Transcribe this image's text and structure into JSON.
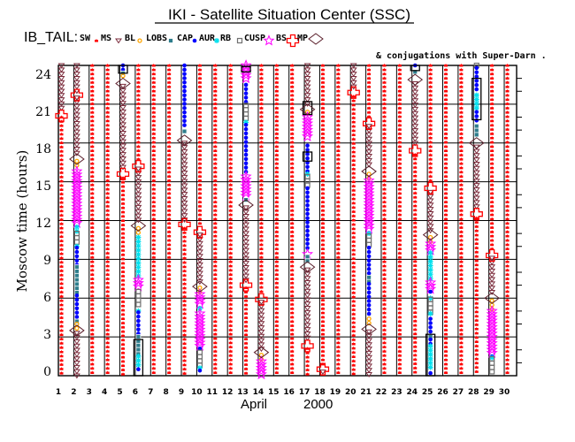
{
  "chart_data": {
    "type": "scatter",
    "title": "IKI - Satellite Situation Center (SSC)",
    "legend_title": "IB_TAIL:",
    "legend_note": "& conjugations with Super-Darn .",
    "legend_placement": "top",
    "xlabel_month": "April",
    "xlabel_year": "2000",
    "ylabel": "Moscow time (hours)",
    "xlim": [
      1,
      30
    ],
    "ylim": [
      0,
      24
    ],
    "grid": true,
    "x_ticks": [
      "1",
      "2",
      "3",
      "4",
      "5",
      "6",
      "7",
      "8",
      "9",
      "10",
      "11",
      "12",
      "13",
      "14",
      "15",
      "16",
      "17",
      "18",
      "19",
      "20",
      "21",
      "22",
      "23",
      "24",
      "25",
      "26",
      "27",
      "28",
      "29",
      "30"
    ],
    "y_ticks": [
      "0",
      "3",
      "6",
      "9",
      "12",
      "15",
      "18",
      "21",
      "24"
    ],
    "legend": [
      {
        "key": "SW",
        "label": "SW",
        "symbol": "red-splat",
        "color": "#ff0000"
      },
      {
        "key": "MS",
        "label": "MS",
        "symbol": "triangle-down",
        "color": "#7b2c3c"
      },
      {
        "key": "BL",
        "label": "BL",
        "symbol": "sun-circle",
        "color": "#ffa500"
      },
      {
        "key": "LOBS",
        "label": "LOBS",
        "symbol": "filled-square",
        "color": "#2e7d8c"
      },
      {
        "key": "CAP",
        "label": "CAP",
        "symbol": "dot",
        "color": "#0000ff"
      },
      {
        "key": "AUR",
        "label": "AUR",
        "symbol": "asterisk",
        "color": "#00e0ee"
      },
      {
        "key": "RB",
        "label": "RB",
        "symbol": "open-square",
        "color": "#707070"
      },
      {
        "key": "CUSP",
        "label": "CUSP",
        "symbol": "star",
        "color": "#ff00ff"
      },
      {
        "key": "BS",
        "label": "BS",
        "symbol": "cross",
        "color": "#ff0000"
      },
      {
        "key": "MP",
        "label": "MP",
        "symbol": "diamond",
        "color": "#5a1e2a"
      }
    ],
    "superdarn_color": "#000000",
    "days": [
      {
        "day": 1,
        "segments": [
          [
            "MS",
            24,
            20.4
          ],
          [
            "SW",
            20.0,
            0
          ]
        ],
        "bs": [
          20.1
        ],
        "mp": [],
        "superdarn": []
      },
      {
        "day": 2,
        "segments": [
          [
            "MS",
            24,
            21.9
          ],
          [
            "MS",
            21.5,
            16.9
          ],
          [
            "BL",
            16.6,
            16.0
          ],
          [
            "CUSP",
            15.8,
            11.6
          ],
          [
            "AUR",
            11.5,
            11.1
          ],
          [
            "RB",
            11.0,
            10.2
          ],
          [
            "AUR",
            10.0,
            10.0
          ],
          [
            "CAP",
            9.9,
            8.5
          ],
          [
            "LOBS",
            8.4,
            6.3
          ],
          [
            "CAP",
            6.2,
            4.3
          ],
          [
            "LOBS",
            4.2,
            4.2
          ],
          [
            "BL",
            4.0,
            3.6
          ],
          [
            "MS",
            3.3,
            0
          ]
        ],
        "bs": [
          21.7
        ],
        "mp": [
          16.75,
          3.5
        ],
        "superdarn": []
      },
      {
        "day": 3,
        "segments": [
          [
            "SW",
            24,
            0
          ]
        ],
        "bs": [],
        "mp": [],
        "superdarn": []
      },
      {
        "day": 4,
        "segments": [
          [
            "SW",
            24,
            0
          ]
        ],
        "bs": [],
        "mp": [],
        "superdarn": []
      },
      {
        "day": 5,
        "segments": [
          [
            "CAP",
            24,
            23.6
          ],
          [
            "LOBS",
            23.4,
            23.4
          ],
          [
            "BL",
            23.2,
            23.0
          ],
          [
            "MS",
            22.4,
            15.9
          ],
          [
            "SW",
            15.3,
            0
          ]
        ],
        "bs": [
          15.6
        ],
        "mp": [
          22.6
        ],
        "superdarn": [
          [
            24,
            23.4
          ]
        ]
      },
      {
        "day": 6,
        "segments": [
          [
            "SW",
            24,
            16.5
          ],
          [
            "MS",
            16.0,
            11.9
          ],
          [
            "BL",
            11.4,
            10.8
          ],
          [
            "AUR",
            10.7,
            7.6
          ],
          [
            "CUSP",
            7.4,
            6.7
          ],
          [
            "RB",
            6.5,
            5.2
          ],
          [
            "AUR",
            5.0,
            5.0
          ],
          [
            "CAP",
            4.9,
            3.1
          ],
          [
            "LOBS",
            3.0,
            1.6
          ],
          [
            "AUR",
            1.5,
            0.6
          ],
          [
            "CAP",
            0.5,
            0.2
          ]
        ],
        "bs": [
          16.2
        ],
        "mp": [
          11.6
        ],
        "superdarn": [
          [
            2.8,
            0
          ]
        ]
      },
      {
        "day": 7,
        "segments": [
          [
            "SW",
            24,
            0
          ]
        ],
        "bs": [],
        "mp": [],
        "superdarn": []
      },
      {
        "day": 8,
        "segments": [
          [
            "SW",
            24,
            0
          ]
        ],
        "bs": [],
        "mp": [],
        "superdarn": []
      },
      {
        "day": 9,
        "segments": [
          [
            "CAP",
            24,
            19.1
          ],
          [
            "LOBS",
            18.9,
            18.6
          ],
          [
            "MS",
            18.0,
            12.0
          ],
          [
            "SW",
            11.4,
            0
          ]
        ],
        "bs": [
          11.7
        ],
        "mp": [
          18.2
        ],
        "superdarn": []
      },
      {
        "day": 10,
        "segments": [
          [
            "SW",
            24,
            11.5
          ],
          [
            "MS",
            10.9,
            7.2
          ],
          [
            "BL",
            6.8,
            6.4
          ],
          [
            "CUSP",
            6.3,
            5.5
          ],
          [
            "AUR",
            5.2,
            4.9
          ],
          [
            "CUSP",
            4.8,
            2.2
          ],
          [
            "CAP",
            2.1,
            1.9
          ],
          [
            "RB",
            1.8,
            0.8
          ],
          [
            "AUR",
            0.6,
            0.6
          ],
          [
            "CAP",
            0.4,
            0.2
          ]
        ],
        "bs": [
          11.1
        ],
        "mp": [
          6.9
        ],
        "superdarn": []
      },
      {
        "day": 11,
        "segments": [
          [
            "SW",
            24,
            0
          ]
        ],
        "bs": [],
        "mp": [],
        "superdarn": []
      },
      {
        "day": 12,
        "segments": [
          [
            "SW",
            24,
            0
          ]
        ],
        "bs": [],
        "mp": [],
        "superdarn": []
      },
      {
        "day": 13,
        "segments": [
          [
            "CUSP",
            24,
            22.8
          ],
          [
            "CAP",
            22.5,
            21.0
          ],
          [
            "RB",
            20.9,
            19.8
          ],
          [
            "AUR",
            19.6,
            19.6
          ],
          [
            "CAP",
            19.4,
            15.6
          ],
          [
            "CUSP",
            15.4,
            13.8
          ],
          [
            "LOBS",
            13.6,
            13.4
          ],
          [
            "MS",
            13.0,
            7.2
          ],
          [
            "SW",
            6.8,
            0
          ]
        ],
        "bs": [
          7.0
        ],
        "mp": [
          13.2
        ],
        "superdarn": [
          [
            23.9,
            23.5
          ]
        ]
      },
      {
        "day": 14,
        "segments": [
          [
            "SW",
            24,
            6.2
          ],
          [
            "MS",
            5.7,
            2.0
          ],
          [
            "BL",
            1.6,
            1.2
          ],
          [
            "CUSP",
            1.1,
            0
          ]
        ],
        "bs": [
          5.9
        ],
        "mp": [
          1.8
        ],
        "superdarn": []
      },
      {
        "day": 15,
        "segments": [
          [
            "SW",
            24,
            0
          ]
        ],
        "bs": [],
        "mp": [],
        "superdarn": []
      },
      {
        "day": 16,
        "segments": [
          [
            "SW",
            24,
            0
          ]
        ],
        "bs": [],
        "mp": [],
        "superdarn": []
      },
      {
        "day": 17,
        "segments": [
          [
            "MS",
            24,
            20.8
          ],
          [
            "BL",
            20.4,
            20.1
          ],
          [
            "CUSP",
            20.0,
            18.3
          ],
          [
            "CAP",
            17.8,
            15.8
          ],
          [
            "AUR",
            15.6,
            15.6
          ],
          [
            "RB",
            15.4,
            14.6
          ],
          [
            "CAP",
            14.5,
            9.6
          ],
          [
            "CUSP",
            9.4,
            9.4
          ],
          [
            "LOBS",
            9.2,
            8.7
          ],
          [
            "MS",
            8.2,
            2.6
          ],
          [
            "SW",
            2.1,
            0
          ]
        ],
        "bs": [
          2.3
        ],
        "mp": [
          20.6,
          8.4
        ],
        "superdarn": [
          [
            21.2,
            20.2
          ],
          [
            17.3,
            16.6
          ]
        ]
      },
      {
        "day": 18,
        "segments": [
          [
            "SW",
            24,
            0.8
          ],
          [
            "MS",
            0.3,
            0
          ]
        ],
        "bs": [
          0.5
        ],
        "mp": [],
        "superdarn": []
      },
      {
        "day": 19,
        "segments": [
          [
            "SW",
            24,
            0
          ]
        ],
        "bs": [],
        "mp": [],
        "superdarn": []
      },
      {
        "day": 20,
        "segments": [
          [
            "MS",
            24,
            22.2
          ],
          [
            "SW",
            21.6,
            0
          ]
        ],
        "bs": [
          21.9
        ],
        "mp": [],
        "superdarn": []
      },
      {
        "day": 21,
        "segments": [
          [
            "SW",
            24,
            19.8
          ],
          [
            "MS",
            19.3,
            16.1
          ],
          [
            "BL",
            15.6,
            15.2
          ],
          [
            "CUSP",
            15.1,
            11.3
          ],
          [
            "AUR",
            11.0,
            11.0
          ],
          [
            "RB",
            10.8,
            10.0
          ],
          [
            "CAP",
            9.9,
            7.8
          ],
          [
            "LOBS",
            7.6,
            7.2
          ],
          [
            "CAP",
            7.1,
            4.6
          ],
          [
            "BL",
            4.4,
            4.0
          ],
          [
            "MS",
            3.4,
            0
          ]
        ],
        "bs": [
          19.5
        ],
        "mp": [
          15.8,
          3.6
        ],
        "superdarn": []
      },
      {
        "day": 22,
        "segments": [
          [
            "SW",
            24,
            0
          ]
        ],
        "bs": [],
        "mp": [],
        "superdarn": []
      },
      {
        "day": 23,
        "segments": [
          [
            "SW",
            24,
            0
          ]
        ],
        "bs": [],
        "mp": [],
        "superdarn": []
      },
      {
        "day": 24,
        "segments": [
          [
            "CAP",
            24,
            23.7
          ],
          [
            "LOBS",
            23.5,
            23.2
          ],
          [
            "MS",
            22.6,
            17.7
          ],
          [
            "SW",
            17.1,
            0
          ]
        ],
        "bs": [
          17.4
        ],
        "mp": [
          22.9
        ],
        "superdarn": [
          [
            24,
            23.6
          ]
        ]
      },
      {
        "day": 25,
        "segments": [
          [
            "SW",
            24,
            14.8
          ],
          [
            "MS",
            14.2,
            11.2
          ],
          [
            "BL",
            10.7,
            10.3
          ],
          [
            "CUSP",
            10.2,
            9.7
          ],
          [
            "AUR",
            9.5,
            7.3
          ],
          [
            "CUSP",
            7.2,
            6.7
          ],
          [
            "CAP",
            6.5,
            6.2
          ],
          [
            "AUR",
            6.0,
            6.0
          ],
          [
            "RB",
            5.9,
            4.9
          ],
          [
            "AUR",
            4.8,
            4.5
          ],
          [
            "CAP",
            4.4,
            3.3
          ],
          [
            "LOBS",
            3.0,
            3.0
          ],
          [
            "CAP",
            2.8,
            2.4
          ],
          [
            "AUR",
            2.3,
            0.4
          ],
          [
            "CAP",
            0.2,
            0.2
          ]
        ],
        "bs": [
          14.5
        ],
        "mp": [
          10.9
        ],
        "superdarn": [
          [
            3.2,
            0
          ]
        ]
      },
      {
        "day": 26,
        "segments": [
          [
            "SW",
            24,
            0
          ]
        ],
        "bs": [],
        "mp": [],
        "superdarn": []
      },
      {
        "day": 27,
        "segments": [
          [
            "SW",
            24,
            0
          ]
        ],
        "bs": [],
        "mp": [],
        "superdarn": []
      },
      {
        "day": 28,
        "segments": [
          [
            "RB",
            24,
            24
          ],
          [
            "CAP",
            23.8,
            21.9
          ],
          [
            "AUR",
            21.7,
            20.6
          ],
          [
            "CAP",
            20.4,
            19.6
          ],
          [
            "LOBS",
            19.3,
            18.6
          ],
          [
            "MS",
            17.7,
            12.8
          ],
          [
            "SW",
            12.2,
            0
          ]
        ],
        "bs": [
          12.5
        ],
        "mp": [
          18.0
        ],
        "superdarn": [
          [
            23.0,
            19.8
          ]
        ]
      },
      {
        "day": 29,
        "segments": [
          [
            "SW",
            24,
            9.7
          ],
          [
            "MS",
            9.1,
            6.3
          ],
          [
            "BL",
            5.8,
            5.0
          ],
          [
            "CUSP",
            5.0,
            1.6
          ],
          [
            "CAP",
            1.5,
            1.5
          ],
          [
            "AUR",
            1.4,
            1.4
          ],
          [
            "RB",
            1.3,
            0.2
          ]
        ],
        "bs": [
          9.3
        ],
        "mp": [
          6.0
        ],
        "superdarn": []
      },
      {
        "day": 30,
        "segments": [
          [
            "SW",
            24,
            0
          ]
        ],
        "bs": [],
        "mp": [],
        "superdarn": []
      }
    ]
  }
}
